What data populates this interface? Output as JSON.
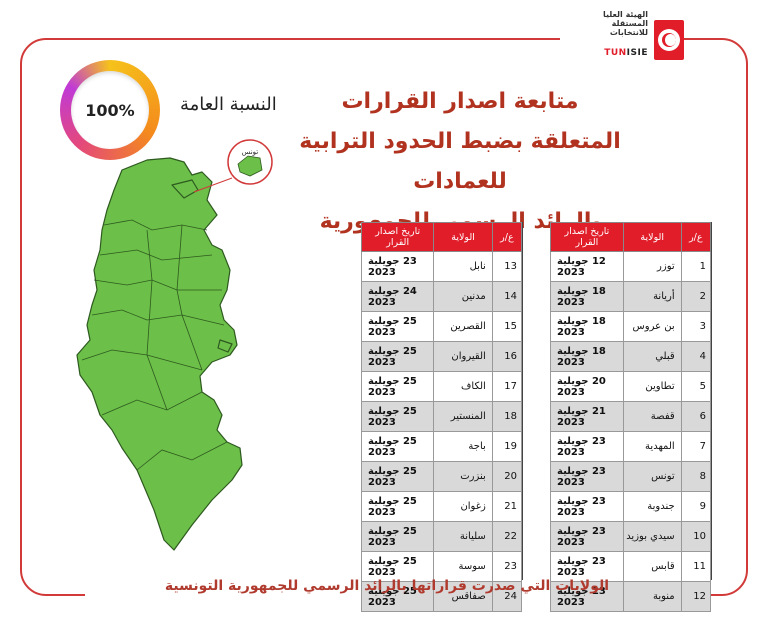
{
  "logo": {
    "arabic_name": "الهيئة العليا المستقلة للانتخابات",
    "acronym_prefix": "TUN",
    "acronym_suffix": "ISIE"
  },
  "title_lines": [
    "متابعة اصدار القرارات",
    "المتعلقة بضبط الحدود الترابية للعمادات",
    "بالرائد الرسمي للجمهورية التونسية"
  ],
  "overall": {
    "label": "النسبة العامة",
    "percent_text": "100%",
    "progress": 1.0
  },
  "map": {
    "fill_color": "#6cbf48",
    "inset_label": "تونس"
  },
  "table_headers": {
    "num": "ع/ر",
    "state": "الولاية",
    "date": "تاريخ اصدار القرار"
  },
  "table_right": [
    {
      "n": "1",
      "state": "توزر",
      "date": "12 جويلية 2023"
    },
    {
      "n": "2",
      "state": "أريانة",
      "date": "18 جويلية 2023"
    },
    {
      "n": "3",
      "state": "بن عروس",
      "date": "18 جويلية 2023"
    },
    {
      "n": "4",
      "state": "قبلي",
      "date": "18 جويلية 2023"
    },
    {
      "n": "5",
      "state": "تطاوين",
      "date": "20 جويلية 2023"
    },
    {
      "n": "6",
      "state": "قفصة",
      "date": "21 جويلية 2023"
    },
    {
      "n": "7",
      "state": "المهدية",
      "date": "23 جويلية 2023"
    },
    {
      "n": "8",
      "state": "تونس",
      "date": "23 جويلية 2023"
    },
    {
      "n": "9",
      "state": "جندوبة",
      "date": "23 جويلية 2023"
    },
    {
      "n": "10",
      "state": "سيدي بوزيد",
      "date": "23 جويلية 2023"
    },
    {
      "n": "11",
      "state": "قابس",
      "date": "23 جويلية 2023"
    },
    {
      "n": "12",
      "state": "منوبة",
      "date": "23 جويلية 2023"
    }
  ],
  "table_left": [
    {
      "n": "13",
      "state": "نابل",
      "date": "23 جويلية 2023"
    },
    {
      "n": "14",
      "state": "مدنين",
      "date": "24 جويلية 2023"
    },
    {
      "n": "15",
      "state": "القصرين",
      "date": "25 جويلية 2023"
    },
    {
      "n": "16",
      "state": "القيروان",
      "date": "25 جويلية 2023"
    },
    {
      "n": "17",
      "state": "الكاف",
      "date": "25 جويلية 2023"
    },
    {
      "n": "18",
      "state": "المنستير",
      "date": "25 جويلية 2023"
    },
    {
      "n": "19",
      "state": "باجة",
      "date": "25 جويلية 2023"
    },
    {
      "n": "20",
      "state": "بنزرت",
      "date": "25 جويلية 2023"
    },
    {
      "n": "21",
      "state": "زغوان",
      "date": "25 جويلية 2023"
    },
    {
      "n": "22",
      "state": "سليانة",
      "date": "25 جويلية 2023"
    },
    {
      "n": "23",
      "state": "سوسة",
      "date": "25 جويلية 2023"
    },
    {
      "n": "24",
      "state": "صفاقس",
      "date": "25 جويلية 2023"
    }
  ],
  "footer": "الولايات التي صدرت قراراتها بالرائد الرسمي للجمهورية التونسية",
  "colors": {
    "accent_red": "#e11d2a",
    "title_red": "#b0321f",
    "row_gray": "#d9d9d9"
  }
}
